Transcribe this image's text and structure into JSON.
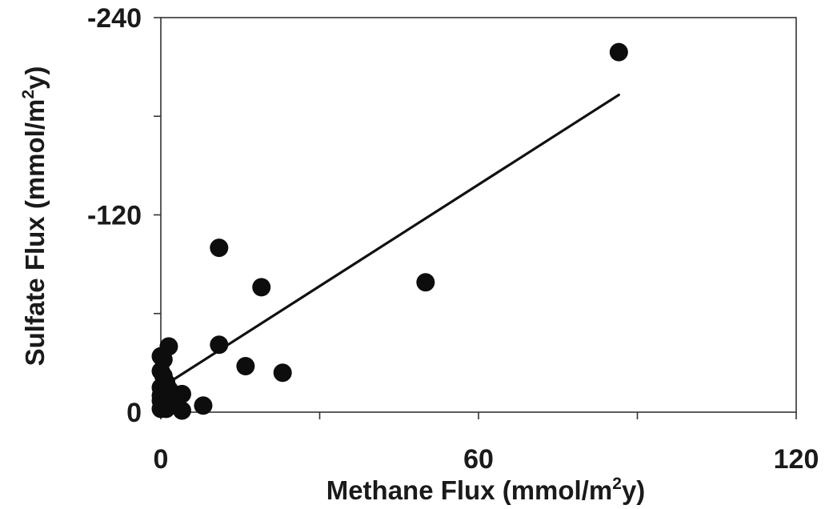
{
  "chart_data": {
    "type": "scatter",
    "title": "",
    "xlabel_parts": [
      "Methane Flux (mmol/m",
      "2",
      "y)"
    ],
    "ylabel_parts": [
      "Sulfate Flux (mmol/m",
      "2",
      "y)"
    ],
    "xlim": [
      0,
      120
    ],
    "ylim": [
      0,
      -240
    ],
    "x_ticks": [
      0,
      30,
      60,
      90,
      120
    ],
    "x_tick_labels": [
      "0",
      "",
      "60",
      "",
      "120"
    ],
    "y_ticks": [
      0,
      -60,
      -120,
      -180,
      -240
    ],
    "y_tick_labels": [
      "0",
      "",
      "-120",
      "",
      "-240"
    ],
    "grid": false,
    "legend": "none",
    "colors": {
      "marker": "#0d0d0d",
      "line": "#111111",
      "axis": "#333333"
    },
    "series": [
      {
        "points": [
          [
            86.5,
            -219
          ],
          [
            11.0,
            -100
          ],
          [
            19.0,
            -76
          ],
          [
            50.0,
            -79
          ],
          [
            11.0,
            -41
          ],
          [
            16.0,
            -28
          ],
          [
            23.0,
            -24
          ],
          [
            8.0,
            -4
          ],
          [
            1.5,
            -40
          ],
          [
            0.0,
            -34
          ],
          [
            0.5,
            -32
          ],
          [
            0.0,
            -25
          ],
          [
            0.5,
            -22
          ],
          [
            1.0,
            -18
          ],
          [
            0.0,
            -15
          ],
          [
            1.5,
            -14
          ],
          [
            0.5,
            -12
          ],
          [
            2.0,
            -12
          ],
          [
            0.0,
            -10
          ],
          [
            3.0,
            -10
          ],
          [
            4.0,
            -11
          ],
          [
            1.0,
            -9
          ],
          [
            0.0,
            -7
          ],
          [
            2.5,
            -7
          ],
          [
            0.5,
            -4
          ],
          [
            0.0,
            -2
          ],
          [
            1.0,
            -2
          ],
          [
            4.0,
            -1
          ]
        ]
      }
    ],
    "trendline": {
      "x": [
        1.5,
        86.5
      ],
      "y": [
        -18,
        -193
      ]
    }
  }
}
